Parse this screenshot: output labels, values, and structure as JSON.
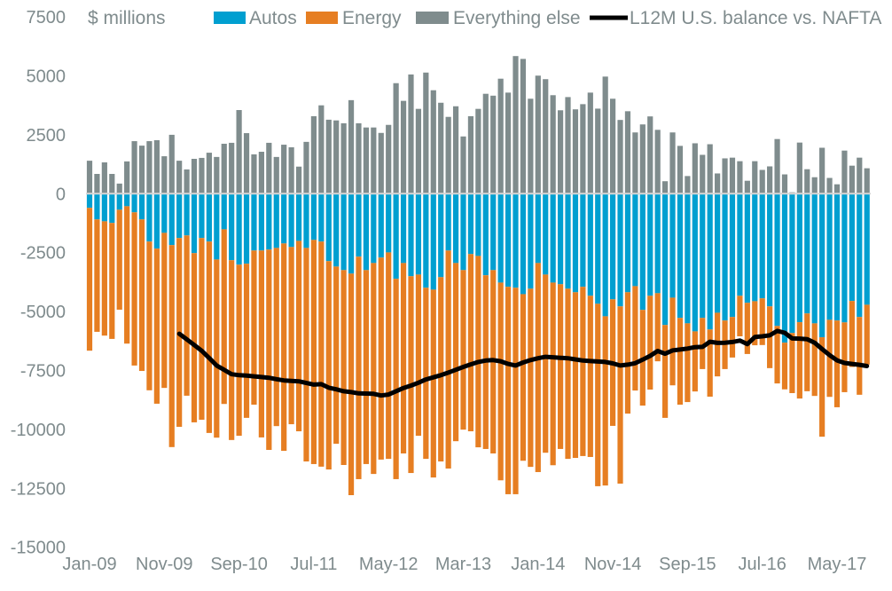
{
  "chart_data": {
    "type": "bar",
    "subtype": "stacked bar with line overlay",
    "title": "",
    "xlabel": "",
    "ylabel": "$ millions",
    "ylim": [
      -15000,
      7500
    ],
    "grid": false,
    "zero_line": true,
    "legend_position": "top",
    "yticks": [
      7500,
      5000,
      2500,
      0,
      -2500,
      -5000,
      -7500,
      -10000,
      -12500,
      -15000
    ],
    "xtick_labels": [
      "Jan-09",
      "Nov-09",
      "Sep-10",
      "Jul-11",
      "May-12",
      "Mar-13",
      "Jan-14",
      "Nov-14",
      "Sep-15",
      "Jul-16",
      "May-17"
    ],
    "categories": [
      "Jan-09",
      "Feb-09",
      "Mar-09",
      "Apr-09",
      "May-09",
      "Jun-09",
      "Jul-09",
      "Aug-09",
      "Sep-09",
      "Oct-09",
      "Nov-09",
      "Dec-09",
      "Jan-10",
      "Feb-10",
      "Mar-10",
      "Apr-10",
      "May-10",
      "Jun-10",
      "Jul-10",
      "Aug-10",
      "Sep-10",
      "Oct-10",
      "Nov-10",
      "Dec-10",
      "Jan-11",
      "Feb-11",
      "Mar-11",
      "Apr-11",
      "May-11",
      "Jun-11",
      "Jul-11",
      "Aug-11",
      "Sep-11",
      "Oct-11",
      "Nov-11",
      "Dec-11",
      "Jan-12",
      "Feb-12",
      "Mar-12",
      "Apr-12",
      "May-12",
      "Jun-12",
      "Jul-12",
      "Aug-12",
      "Sep-12",
      "Oct-12",
      "Nov-12",
      "Dec-12",
      "Jan-13",
      "Feb-13",
      "Mar-13",
      "Apr-13",
      "May-13",
      "Jun-13",
      "Jul-13",
      "Aug-13",
      "Sep-13",
      "Oct-13",
      "Nov-13",
      "Dec-13",
      "Jan-14",
      "Feb-14",
      "Mar-14",
      "Apr-14",
      "May-14",
      "Jun-14",
      "Jul-14",
      "Aug-14",
      "Sep-14",
      "Oct-14",
      "Nov-14",
      "Dec-14",
      "Jan-15",
      "Feb-15",
      "Mar-15",
      "Apr-15",
      "May-15",
      "Jun-15",
      "Jul-15",
      "Aug-15",
      "Sep-15",
      "Oct-15",
      "Nov-15",
      "Dec-15",
      "Jan-16",
      "Feb-16",
      "Mar-16",
      "Apr-16",
      "May-16",
      "Jun-16",
      "Jul-16",
      "Aug-16",
      "Sep-16",
      "Oct-16",
      "Nov-16",
      "Dec-16",
      "Jan-17",
      "Feb-17",
      "Mar-17",
      "Apr-17",
      "May-17",
      "Jun-17",
      "Jul-17",
      "Aug-17",
      "Sep-17"
    ],
    "series": [
      {
        "name": "Autos",
        "type": "bar",
        "color": "#009fd0",
        "values": [
          -600,
          -1090,
          -1170,
          -1240,
          -680,
          -530,
          -790,
          -1090,
          -2030,
          -2330,
          -1660,
          -2180,
          -1880,
          -1770,
          -2520,
          -1880,
          -2030,
          -2790,
          -1510,
          -2820,
          -3010,
          -2970,
          -2410,
          -2410,
          -2370,
          -2300,
          -2110,
          -2260,
          -2000,
          -2300,
          -1960,
          -2030,
          -2860,
          -3090,
          -3240,
          -3390,
          -2670,
          -3240,
          -2940,
          -2710,
          -2490,
          -3610,
          -2940,
          -3500,
          -3430,
          -3990,
          -4070,
          -3540,
          -2410,
          -2940,
          -3240,
          -2560,
          -2640,
          -3460,
          -3240,
          -3770,
          -3950,
          -3990,
          -4260,
          -4030,
          -2940,
          -3430,
          -3770,
          -3840,
          -4030,
          -4180,
          -3950,
          -4330,
          -4670,
          -5200,
          -4480,
          -4780,
          -4180,
          -3920,
          -4930,
          -4330,
          -4220,
          -5570,
          -4410,
          -5270,
          -5500,
          -5840,
          -5270,
          -5760,
          -5050,
          -5380,
          -5230,
          -4330,
          -4630,
          -4560,
          -4440,
          -4780,
          -5610,
          -6320,
          -5910,
          -5450,
          -5080,
          -5500,
          -6090,
          -5350,
          -5380,
          -5460,
          -4550,
          -5230,
          -4710
        ]
      },
      {
        "name": "Energy",
        "type": "bar",
        "color": "#e67e22",
        "values": [
          -6060,
          -4770,
          -4850,
          -4920,
          -4240,
          -5830,
          -6500,
          -6430,
          -6310,
          -6580,
          -6580,
          -8570,
          -8010,
          -6800,
          -7180,
          -7710,
          -8120,
          -7560,
          -7410,
          -7630,
          -7260,
          -6540,
          -6540,
          -7930,
          -8500,
          -7560,
          -8800,
          -7520,
          -8080,
          -9060,
          -9510,
          -9550,
          -8840,
          -7520,
          -8270,
          -9400,
          -9440,
          -8230,
          -8950,
          -8570,
          -8760,
          -8500,
          -8080,
          -8350,
          -6840,
          -7260,
          -7970,
          -7820,
          -9250,
          -7560,
          -6770,
          -7520,
          -8120,
          -7370,
          -7780,
          -8390,
          -8800,
          -8760,
          -7070,
          -7560,
          -8870,
          -7560,
          -7750,
          -6990,
          -7220,
          -7030,
          -7180,
          -6840,
          -7740,
          -7180,
          -5370,
          -7520,
          -5150,
          -4430,
          -4060,
          -3980,
          -2890,
          -3940,
          -3720,
          -3680,
          -3340,
          -2550,
          -2170,
          -2850,
          -2700,
          -2060,
          -1720,
          -1720,
          -2170,
          -1870,
          -1980,
          -2620,
          -2440,
          -1980,
          -2550,
          -3240,
          -3300,
          -3080,
          -4220,
          -3270,
          -3680,
          -2960,
          -2800,
          -3300,
          -2540
        ]
      },
      {
        "name": "Everything else",
        "type": "bar",
        "color": "#7f8c8d",
        "values": [
          1400,
          840,
          1330,
          840,
          430,
          1370,
          2230,
          2040,
          2230,
          2270,
          1590,
          2500,
          1400,
          1030,
          1480,
          1520,
          1740,
          1560,
          2120,
          2160,
          3550,
          2570,
          1670,
          1780,
          2160,
          1560,
          2080,
          1970,
          1150,
          2200,
          3290,
          3750,
          3140,
          3110,
          2990,
          3970,
          2990,
          2810,
          2810,
          2580,
          2920,
          4690,
          3940,
          5060,
          3600,
          5140,
          4390,
          3860,
          3260,
          3710,
          2430,
          3290,
          3600,
          4240,
          4160,
          4880,
          4290,
          5840,
          5720,
          4030,
          5010,
          4860,
          4180,
          3540,
          4100,
          3580,
          3800,
          4290,
          3610,
          4970,
          4030,
          3130,
          3500,
          2600,
          2940,
          3280,
          2710,
          530,
          2600,
          2030,
          750,
          2140,
          1650,
          2100,
          860,
          1500,
          1530,
          1380,
          550,
          1380,
          1010,
          1160,
          2320,
          820,
          60,
          2170,
          1040,
          700,
          1950,
          670,
          400,
          1830,
          1190,
          1530,
          1080
        ]
      },
      {
        "name": "L12M U.S. balance vs. NAFTA",
        "type": "line",
        "color": "#000000",
        "values": [
          null,
          null,
          null,
          null,
          null,
          null,
          null,
          null,
          null,
          null,
          null,
          null,
          -5940,
          -6180,
          -6420,
          -6660,
          -6970,
          -7290,
          -7470,
          -7660,
          -7700,
          -7720,
          -7750,
          -7780,
          -7810,
          -7870,
          -7920,
          -7940,
          -7960,
          -8030,
          -8100,
          -8080,
          -8230,
          -8300,
          -8380,
          -8420,
          -8470,
          -8480,
          -8490,
          -8560,
          -8520,
          -8380,
          -8240,
          -8140,
          -8020,
          -7880,
          -7790,
          -7700,
          -7590,
          -7470,
          -7350,
          -7240,
          -7140,
          -7080,
          -7060,
          -7110,
          -7220,
          -7290,
          -7160,
          -7060,
          -6980,
          -6920,
          -6940,
          -6960,
          -6980,
          -7030,
          -7080,
          -7100,
          -7120,
          -7140,
          -7200,
          -7290,
          -7250,
          -7190,
          -7040,
          -6880,
          -6670,
          -6790,
          -6650,
          -6610,
          -6570,
          -6510,
          -6500,
          -6280,
          -6330,
          -6320,
          -6290,
          -6230,
          -6380,
          -6080,
          -6050,
          -6010,
          -5820,
          -5900,
          -6140,
          -6150,
          -6170,
          -6320,
          -6590,
          -6850,
          -7070,
          -7180,
          -7220,
          -7260,
          -7310
        ]
      }
    ]
  }
}
